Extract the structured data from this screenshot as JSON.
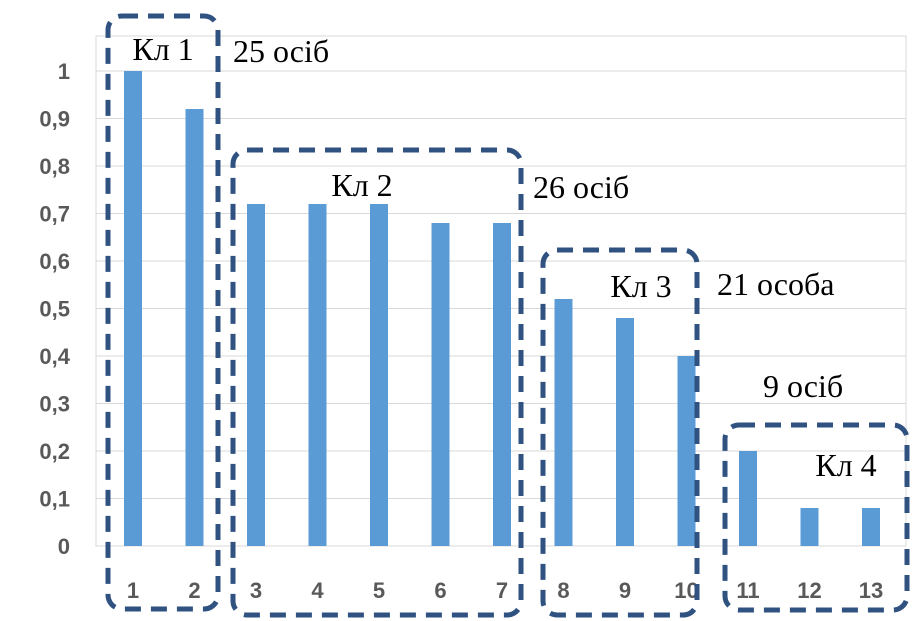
{
  "chart_data": {
    "type": "bar",
    "categories": [
      "1",
      "2",
      "3",
      "4",
      "5",
      "6",
      "7",
      "8",
      "9",
      "10",
      "11",
      "12",
      "13"
    ],
    "values": [
      1.0,
      0.92,
      0.72,
      0.72,
      0.72,
      0.68,
      0.68,
      0.52,
      0.48,
      0.4,
      0.2,
      0.08,
      0.08
    ],
    "ylim": [
      0,
      1
    ],
    "yticks": [
      "0",
      "0,1",
      "0,2",
      "0,3",
      "0,4",
      "0,5",
      "0,6",
      "0,7",
      "0,8",
      "0,9",
      "1"
    ],
    "grid": true,
    "bar_color": "#5b9bd5",
    "cluster_box_color": "#2f5281",
    "clusters": [
      {
        "name": "Кл 1",
        "count_label": "25 осіб",
        "categories": [
          "1",
          "2"
        ]
      },
      {
        "name": "Кл 2",
        "count_label": "26 осіб",
        "categories": [
          "3",
          "4",
          "5",
          "6",
          "7"
        ]
      },
      {
        "name": "Кл 3",
        "count_label": "21 особа",
        "categories": [
          "8",
          "9",
          "10"
        ]
      },
      {
        "name": "Кл 4",
        "count_label": "9 осіб",
        "categories": [
          "11",
          "12",
          "13"
        ]
      }
    ]
  }
}
